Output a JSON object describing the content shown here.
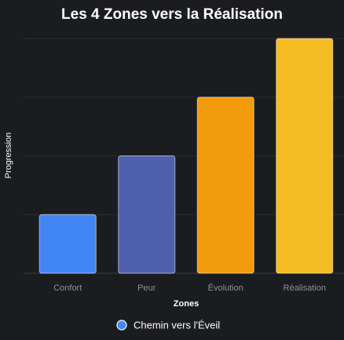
{
  "chart_data": {
    "type": "bar",
    "title": "Les 4 Zones vers la Réalisation",
    "xlabel": "Zones",
    "ylabel": "Progression",
    "categories": [
      "Confort",
      "Peur",
      "Évolution",
      "Réalisation"
    ],
    "series": [
      {
        "name": "Chemin vers l'Éveil",
        "values": [
          25,
          50,
          75,
          100
        ],
        "colors": [
          "#4285f4",
          "#4e5fae",
          "#f29c0d",
          "#f6bc23"
        ]
      }
    ],
    "ylim": [
      0,
      100
    ],
    "grid": true,
    "show_y_tick_labels": false,
    "legend_position": "bottom",
    "legend_marker_color": "#4285f4",
    "background_color": "#1b1c20"
  }
}
